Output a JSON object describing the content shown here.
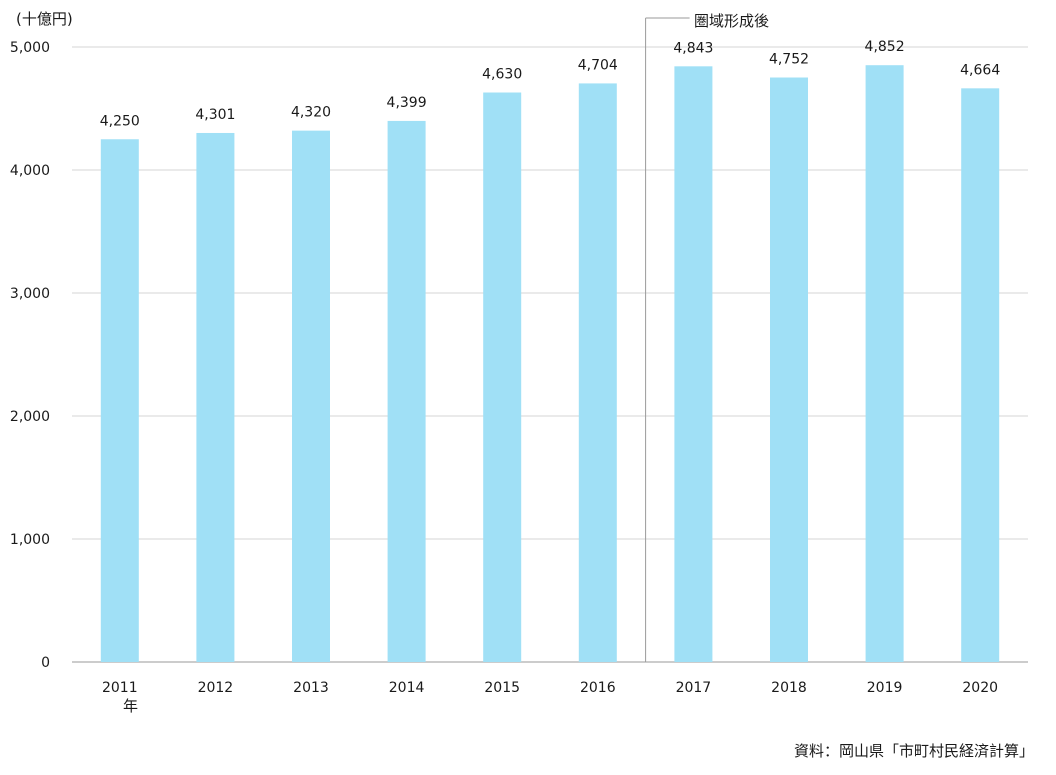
{
  "chart_data": {
    "type": "bar",
    "unit_label": "(十億円)",
    "categories": [
      "2011",
      "2012",
      "2013",
      "2014",
      "2015",
      "2016",
      "2017",
      "2018",
      "2019",
      "2020"
    ],
    "category_suffix": "年",
    "values": [
      4250,
      4301,
      4320,
      4399,
      4630,
      4704,
      4843,
      4752,
      4852,
      4664
    ],
    "value_labels": [
      "4,250",
      "4,301",
      "4,320",
      "4,399",
      "4,630",
      "4,704",
      "4,843",
      "4,752",
      "4,852",
      "4,664"
    ],
    "ylim": [
      0,
      5000
    ],
    "yticks": [
      0,
      1000,
      2000,
      3000,
      4000,
      5000
    ],
    "ytick_labels": [
      "0",
      "1,000",
      "2,000",
      "3,000",
      "4,000",
      "5,000"
    ],
    "grid": true,
    "bar_color": "#a0e0f6",
    "annotation": {
      "label": "圏域形成後",
      "between": [
        "2016",
        "2017"
      ]
    },
    "source": "資料：岡山県「市町村民経済計算」"
  }
}
